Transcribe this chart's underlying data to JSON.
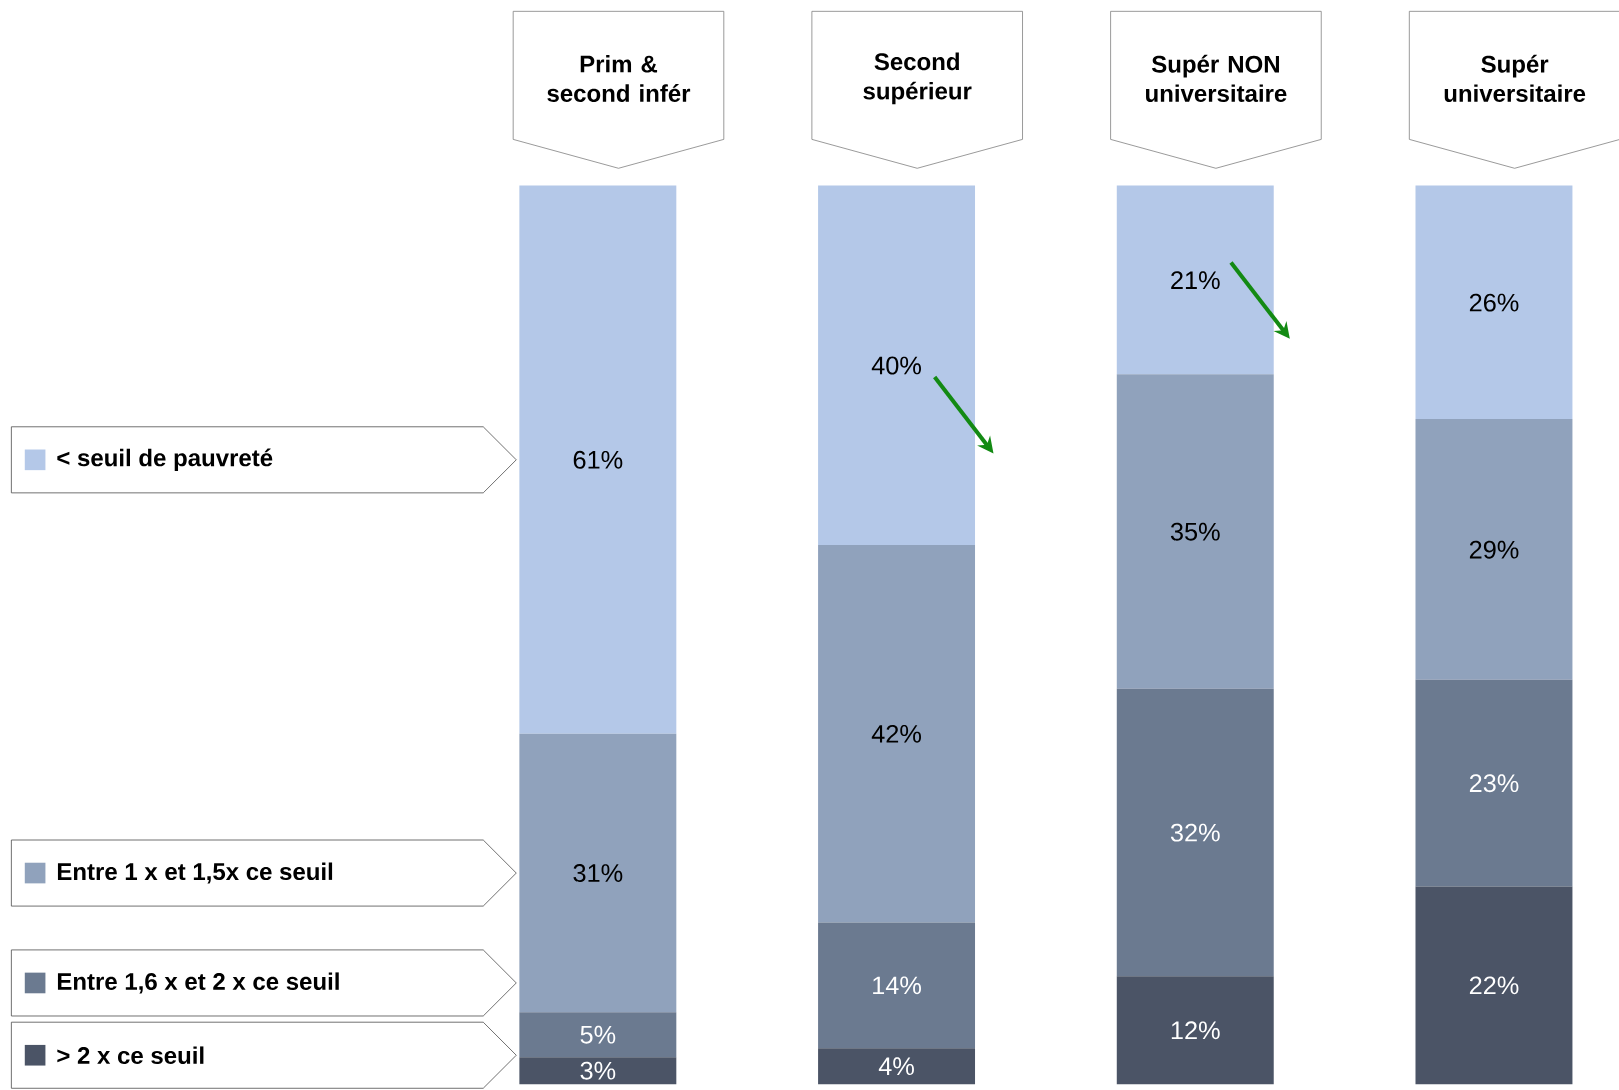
{
  "chart_data": {
    "type": "bar",
    "stacked": true,
    "legend": "left",
    "categories": [
      "Prim & second infér",
      "Second supérieur",
      "Supér NON universitaire",
      "Supér universitaire"
    ],
    "series": [
      {
        "name": "> 2 x ce seuil",
        "color": "#4b5466",
        "values": [
          3,
          4,
          12,
          22
        ],
        "value_labels": [
          "3%",
          "4%",
          "12%",
          "22%"
        ]
      },
      {
        "name": "Entre 1,6 x et 2 x ce seuil",
        "color": "#6b7a90",
        "values": [
          5,
          14,
          32,
          23
        ],
        "value_labels": [
          "5%",
          "14%",
          "32%",
          "23%"
        ]
      },
      {
        "name": "Entre 1 x et 1,5x ce seuil",
        "color": "#90a2bc",
        "values": [
          31,
          42,
          35,
          29
        ],
        "value_labels": [
          "31%",
          "42%",
          "35%",
          "29%"
        ]
      },
      {
        "name": "< seuil de pauvreté",
        "color": "#b4c8e8",
        "values": [
          61,
          40,
          21,
          26
        ],
        "value_labels": [
          "61%",
          "40%",
          "21%",
          "26%"
        ]
      }
    ]
  }
}
